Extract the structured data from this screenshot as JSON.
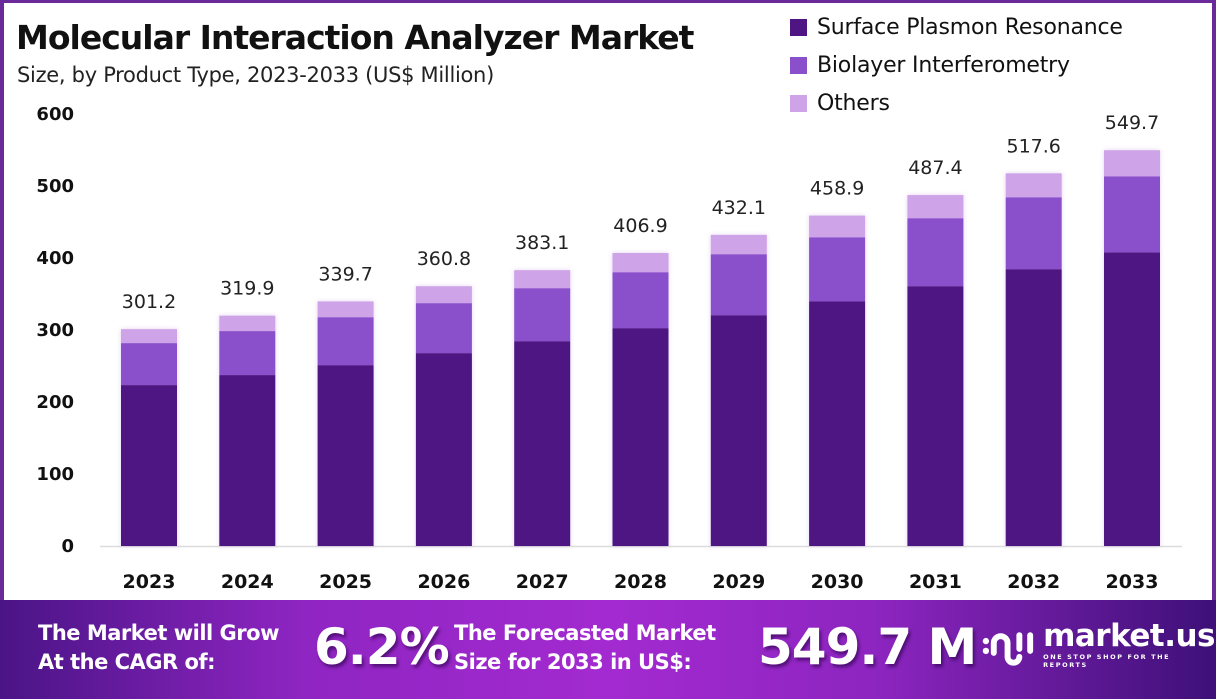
{
  "header": {
    "title": "Molecular Interaction Analyzer Market",
    "subtitle": "Size, by Product Type, 2023-2033 (US$ Million)"
  },
  "legend": [
    {
      "label": "Surface Plasmon Resonance",
      "color": "#4e1583"
    },
    {
      "label": "Biolayer Interferometry",
      "color": "#8a4fcb"
    },
    {
      "label": "Others",
      "color": "#cfa3e8"
    }
  ],
  "chart_data": {
    "type": "bar",
    "stacked": true,
    "title": "Molecular Interaction Analyzer Market",
    "subtitle": "Size, by Product Type, 2023-2033 (US$ Million)",
    "xlabel": "",
    "ylabel": "",
    "ylim": [
      0,
      600
    ],
    "yticks": [
      0,
      100,
      200,
      300,
      400,
      500,
      600
    ],
    "grid": false,
    "legend_position": "top-right",
    "categories": [
      "2023",
      "2024",
      "2025",
      "2026",
      "2027",
      "2028",
      "2029",
      "2030",
      "2031",
      "2032",
      "2033"
    ],
    "series": [
      {
        "name": "Surface Plasmon Resonance",
        "color": "#4e1583",
        "values": [
          223.5,
          237.4,
          251.2,
          267.9,
          284.5,
          302.6,
          320.6,
          340.0,
          360.9,
          384.5,
          408.0
        ]
      },
      {
        "name": "Biolayer Interferometry",
        "color": "#8a4fcb",
        "values": [
          58.3,
          61.1,
          66.6,
          69.4,
          73.6,
          77.7,
          84.7,
          88.8,
          94.4,
          99.9,
          105.5
        ]
      },
      {
        "name": "Others",
        "color": "#cfa3e8",
        "values": [
          19.4,
          21.4,
          21.9,
          23.5,
          25.0,
          26.6,
          26.8,
          30.1,
          32.1,
          33.2,
          36.2
        ]
      }
    ],
    "totals": [
      301.2,
      319.9,
      339.7,
      360.8,
      383.1,
      406.9,
      432.1,
      458.9,
      487.4,
      517.6,
      549.7
    ],
    "total_labels": [
      "301.2",
      "319.9",
      "339.7",
      "360.8",
      "383.1",
      "406.9",
      "432.1",
      "458.9",
      "487.4",
      "517.6",
      "549.7"
    ]
  },
  "banner": {
    "cagr_text_line1": "The Market will Grow",
    "cagr_text_line2": "At the CAGR of:",
    "cagr_value": "6.2%",
    "forecast_text_line1": "The Forecasted Market",
    "forecast_text_line2": "Size for 2033 in US$:",
    "forecast_value": "549.7 M",
    "logo_name": "market.us",
    "logo_tagline": "ONE STOP SHOP FOR THE REPORTS"
  }
}
